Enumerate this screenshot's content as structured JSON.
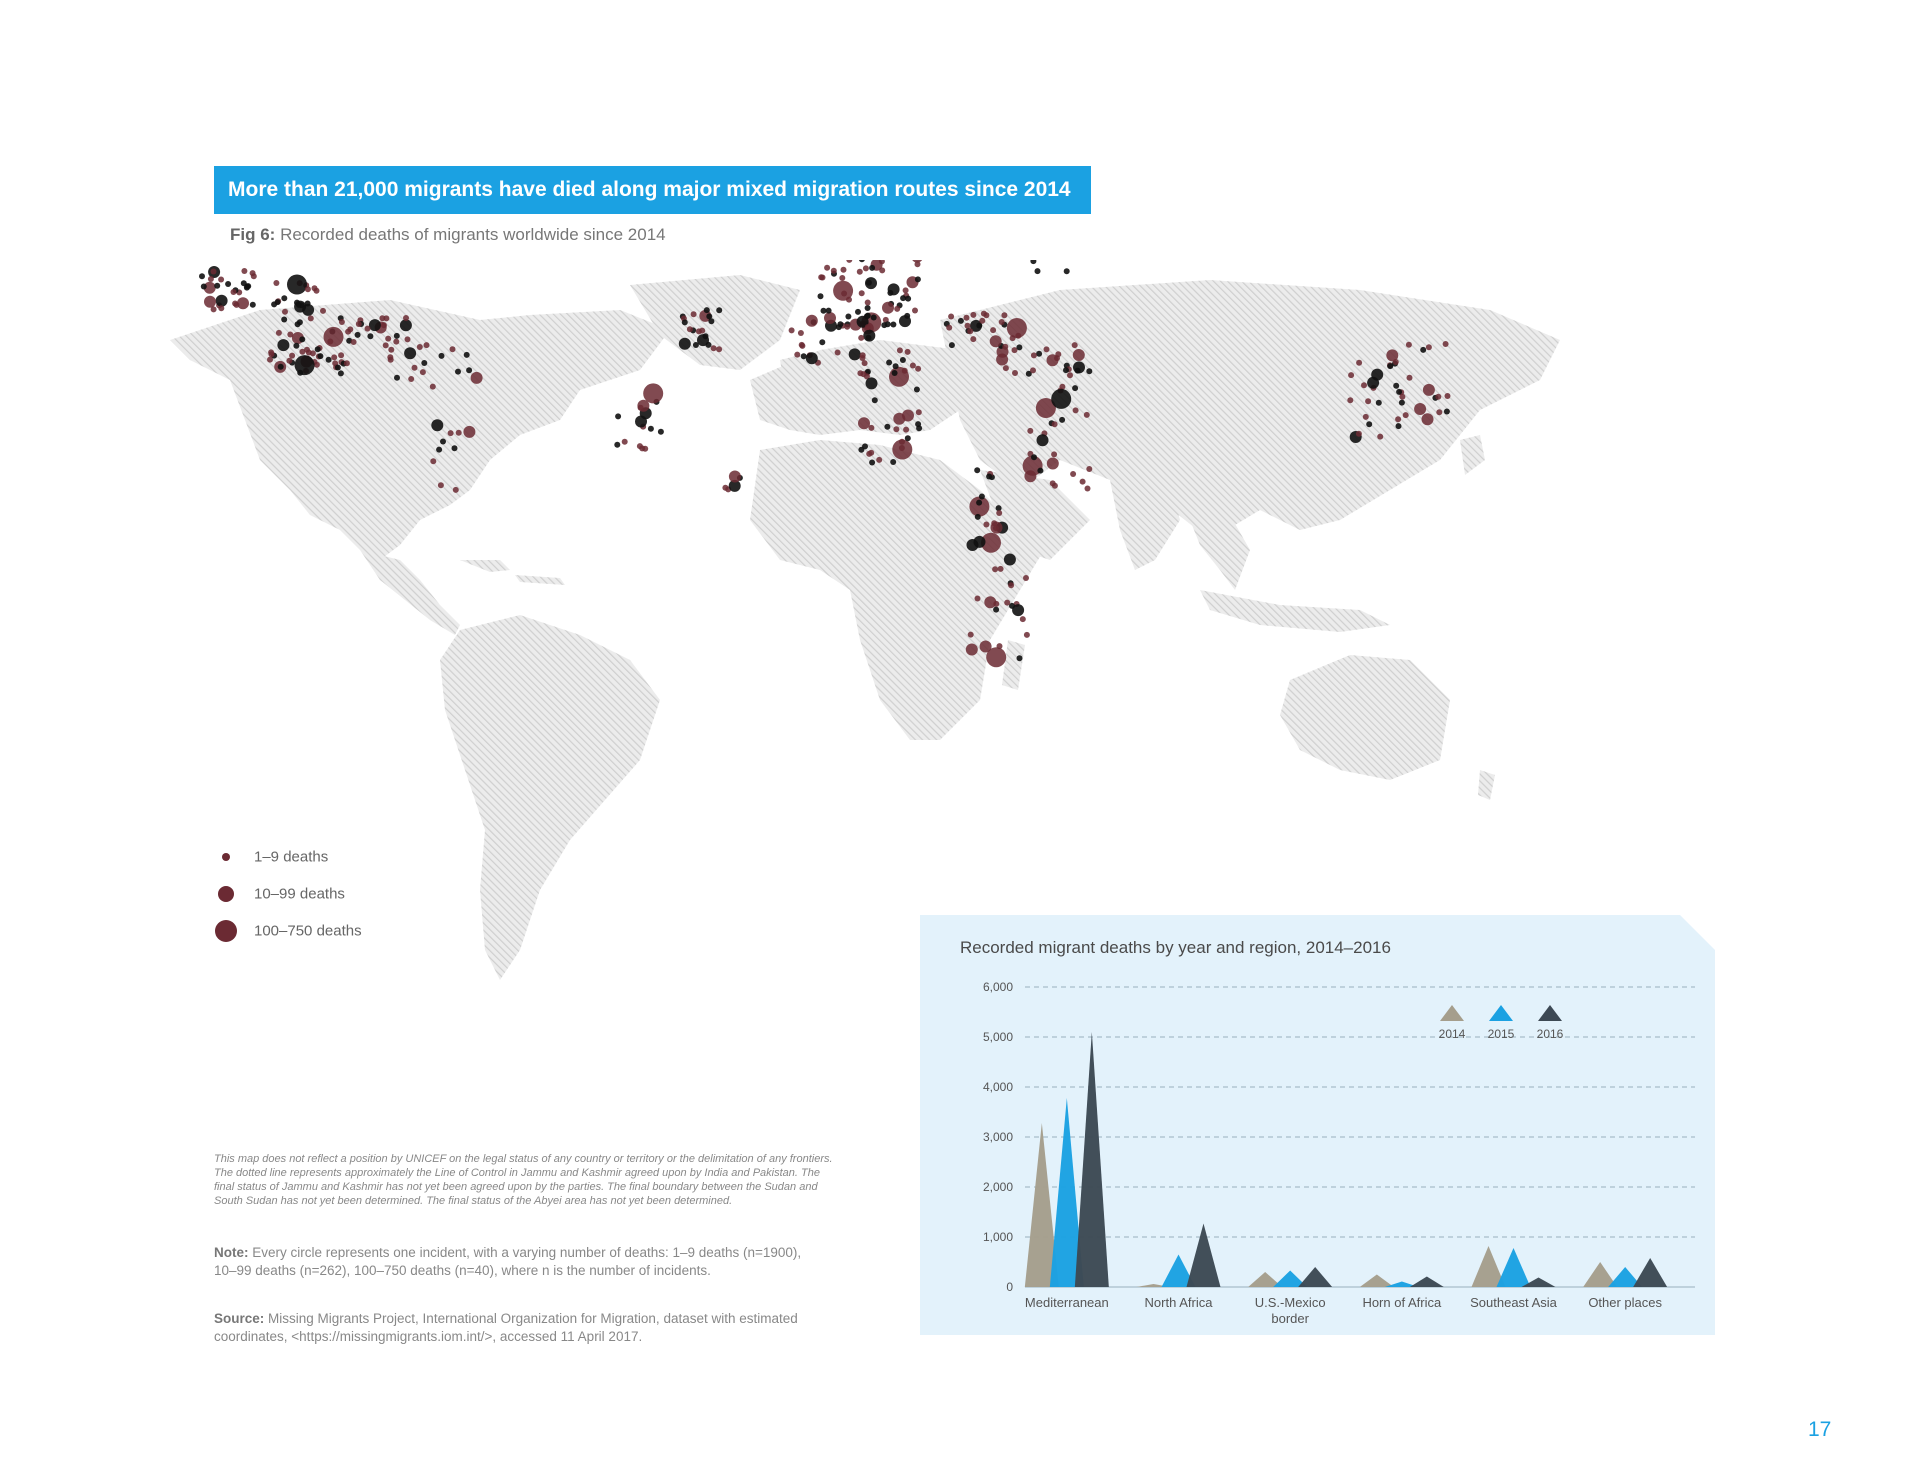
{
  "header": {
    "banner": "More than 21,000 migrants have died along major mixed migration routes since 2014",
    "fig_label": "Fig 6:",
    "fig_title": "Recorded deaths of migrants worldwide since 2014"
  },
  "legend": {
    "items": [
      {
        "label": "1–9 deaths"
      },
      {
        "label": "10–99 deaths"
      },
      {
        "label": "100–750 deaths"
      }
    ]
  },
  "colors": {
    "banner": "#1ba1e2",
    "dot": "#6b2a33",
    "dot_dark": "#111111",
    "land": "#d4d4d4",
    "panel": "#e3f2fb",
    "y2014": "#a59e8c",
    "y2015": "#1ba1e2",
    "y2016": "#3d4954"
  },
  "footer": {
    "disclaimer": "This map does not reflect a position by UNICEF on the legal status of any country or territory or the delimitation of any frontiers. The dotted line represents approximately the Line of Control in Jammu and Kashmir agreed upon by India and Pakistan. The final status of Jammu and Kashmir has not yet been agreed upon by the parties. The final boundary between the Sudan and South Sudan has not yet been determined. The final status of the Abyei area has not yet been determined.",
    "note_label": "Note:",
    "note_text": " Every circle represents one incident, with a varying number of deaths: 1–9 deaths (n=1900), 10–99 deaths (n=262), 100–750 deaths (n=40), where n is the number of incidents.",
    "source_label": "Source:",
    "source_text": " Missing Migrants Project, International Organization for Migration, dataset with estimated coordinates, <https://missingmigrants.iom.int/>, accessed 11 April 2017.",
    "page_number": "17"
  },
  "chart_data": {
    "type": "area",
    "title": "Recorded migrant deaths by year and region, 2014–2016",
    "categories": [
      "Mediterranean",
      "North Africa",
      "U.S.-Mexico border",
      "Horn of Africa",
      "Southeast Asia",
      "Other places"
    ],
    "category_lines": [
      [
        "Mediterranean"
      ],
      [
        "North Africa"
      ],
      [
        "U.S.-Mexico",
        "border"
      ],
      [
        "Horn of Africa"
      ],
      [
        "Southeast Asia"
      ],
      [
        "Other places"
      ]
    ],
    "series": [
      {
        "name": "2014",
        "values": [
          3280,
          60,
          300,
          250,
          820,
          500
        ]
      },
      {
        "name": "2015",
        "values": [
          3780,
          650,
          330,
          110,
          780,
          400
        ]
      },
      {
        "name": "2016",
        "values": [
          5100,
          1270,
          400,
          210,
          190,
          580
        ]
      }
    ],
    "ylim": [
      0,
      6000
    ],
    "yticks": [
      "0",
      "1,000",
      "2,000",
      "3,000",
      "4,000",
      "5,000",
      "6,000"
    ],
    "legend_position": "top-right",
    "grid": true
  }
}
